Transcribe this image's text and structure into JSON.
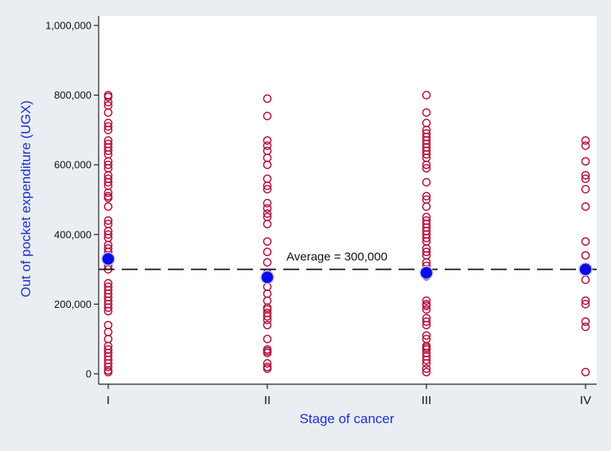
{
  "chart_data": {
    "type": "scatter",
    "xlabel": "Stage of cancer",
    "ylabel": "Out of pocket expenditure (UGX)",
    "categories": [
      "I",
      "II",
      "III",
      "IV"
    ],
    "ylim": [
      0,
      1000000
    ],
    "yticks": [
      0,
      200000,
      400000,
      600000,
      800000,
      1000000
    ],
    "ytick_labels": [
      "0",
      "200,000",
      "400,000",
      "600,000",
      "800,000",
      "1,000,000"
    ],
    "grid": false,
    "reference_line": {
      "value": 300000,
      "label": "Average = 300,000",
      "style": "dashed"
    },
    "series": [
      {
        "name": "",
        "marker": "hollow-circle",
        "points": {
          "I": [
            800000,
            795000,
            780000,
            770000,
            750000,
            720000,
            710000,
            700000,
            670000,
            660000,
            650000,
            640000,
            630000,
            610000,
            600000,
            590000,
            570000,
            560000,
            550000,
            540000,
            520000,
            510000,
            505000,
            480000,
            440000,
            430000,
            410000,
            400000,
            390000,
            370000,
            360000,
            350000,
            340000,
            330000,
            310000,
            300000,
            260000,
            250000,
            240000,
            230000,
            220000,
            210000,
            200000,
            190000,
            180000,
            140000,
            120000,
            100000,
            80000,
            70000,
            60000,
            50000,
            40000,
            30000,
            20000,
            10000,
            5000
          ],
          "II": [
            790000,
            740000,
            670000,
            655000,
            640000,
            620000,
            600000,
            560000,
            540000,
            530000,
            490000,
            475000,
            460000,
            450000,
            430000,
            380000,
            350000,
            320000,
            290000,
            250000,
            230000,
            210000,
            190000,
            185000,
            175000,
            165000,
            155000,
            140000,
            100000,
            70000,
            65000,
            60000,
            30000,
            20000,
            15000
          ],
          "III": [
            800000,
            750000,
            720000,
            700000,
            690000,
            680000,
            670000,
            660000,
            650000,
            640000,
            630000,
            620000,
            600000,
            590000,
            550000,
            510000,
            500000,
            480000,
            450000,
            440000,
            430000,
            420000,
            410000,
            400000,
            390000,
            380000,
            360000,
            350000,
            340000,
            320000,
            310000,
            280000,
            210000,
            200000,
            195000,
            185000,
            160000,
            150000,
            140000,
            110000,
            100000,
            80000,
            75000,
            70000,
            60000,
            50000,
            40000,
            30000,
            15000,
            5000
          ],
          "IV": [
            670000,
            655000,
            610000,
            570000,
            560000,
            530000,
            480000,
            380000,
            340000,
            270000,
            210000,
            200000,
            150000,
            135000,
            5000
          ]
        },
        "color": "#b5123e"
      },
      {
        "name": "",
        "marker": "filled-circle",
        "categories": [
          "I",
          "II",
          "III",
          "IV"
        ],
        "values": [
          330000,
          277000,
          290000,
          300000
        ],
        "color": "#0a0ae6"
      }
    ],
    "colors": {
      "axis_label": "#1a2fd6",
      "frame": "#222222",
      "plot_bg": "#ffffff",
      "page_bg": "#eaedf1",
      "ref_line": "#111111"
    }
  }
}
